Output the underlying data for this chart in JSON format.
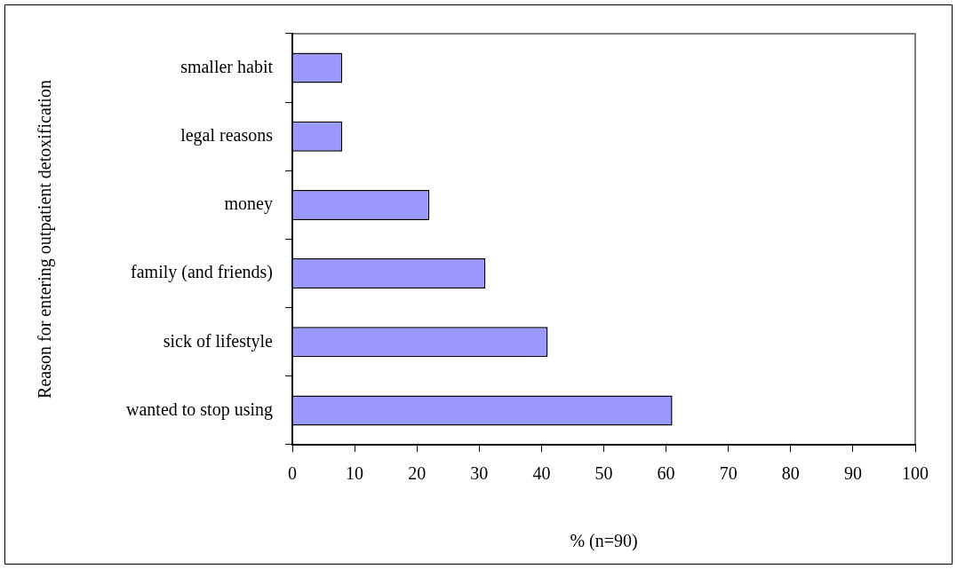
{
  "chart_data": {
    "type": "bar",
    "orientation": "horizontal",
    "xlabel": "% (n=90)",
    "ylabel": "Reason for entering outpatient detoxification",
    "categories": [
      "smaller habit",
      "legal reasons",
      "money",
      "family (and friends)",
      "sick of lifestyle",
      "wanted to stop using"
    ],
    "values": [
      8,
      8,
      22,
      31,
      41,
      61
    ],
    "color": "#9999ff",
    "xlim": [
      0,
      100
    ],
    "xticks": [
      0,
      10,
      20,
      30,
      40,
      50,
      60,
      70,
      80,
      90,
      100
    ],
    "grid": false,
    "legend": false
  }
}
